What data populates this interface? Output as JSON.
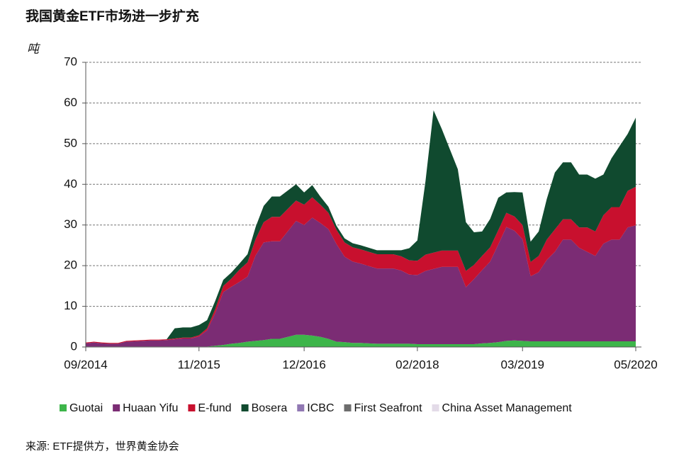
{
  "chart_data": {
    "type": "stacked_area",
    "title": "我国黄金ETF市场进一步扩充",
    "y_label": "吨",
    "source": "来源: ETF提供方，世界黄金协会",
    "categories": [
      "09/2014",
      null,
      null,
      null,
      null,
      null,
      null,
      null,
      null,
      null,
      null,
      null,
      null,
      null,
      "11/2015",
      null,
      null,
      null,
      null,
      null,
      null,
      null,
      null,
      null,
      null,
      null,
      null,
      "12/2016",
      null,
      null,
      null,
      null,
      null,
      null,
      null,
      null,
      null,
      null,
      null,
      null,
      null,
      "02/2018",
      null,
      null,
      null,
      null,
      null,
      null,
      null,
      null,
      null,
      null,
      null,
      null,
      "03/2019",
      null,
      null,
      null,
      null,
      null,
      null,
      null,
      null,
      null,
      null,
      null,
      null,
      null,
      "05/2020"
    ],
    "series": [
      {
        "name": "Guotai",
        "color": "#3db54a",
        "values": [
          0.1,
          0.1,
          0.1,
          0.1,
          0.1,
          0.1,
          0.1,
          0.1,
          0.1,
          0.1,
          0.1,
          0.1,
          0.1,
          0.1,
          0.1,
          0.1,
          0.3,
          0.5,
          0.8,
          1,
          1.3,
          1.5,
          1.7,
          2,
          2,
          2.5,
          3,
          3,
          2.8,
          2.5,
          2,
          1.3,
          1.2,
          1,
          1,
          0.9,
          0.8,
          0.8,
          0.8,
          0.8,
          0.8,
          0.7,
          0.7,
          0.7,
          0.7,
          0.7,
          0.7,
          0.7,
          0.7,
          0.9,
          1,
          1.2,
          1.5,
          1.6,
          1.5,
          1.4,
          1.4,
          1.4,
          1.4,
          1.4,
          1.4,
          1.4,
          1.4,
          1.4,
          1.4,
          1.4,
          1.4,
          1.4,
          1.4
        ]
      },
      {
        "name": "Huaan Yifu",
        "color": "#7b2c74",
        "values": [
          0.8,
          1,
          0.8,
          0.7,
          0.7,
          1.2,
          1.3,
          1.4,
          1.5,
          1.5,
          1.6,
          1.8,
          2,
          2,
          2.5,
          4,
          8,
          13,
          14,
          15,
          16,
          21,
          24,
          24,
          24,
          26,
          28,
          27,
          29,
          28,
          27,
          24,
          21,
          20,
          19.5,
          19,
          18.5,
          18.5,
          18.5,
          18,
          17,
          17,
          18,
          18.5,
          19,
          19,
          19,
          14,
          16,
          18,
          20,
          24,
          28,
          27,
          25,
          16,
          17,
          20,
          22,
          25,
          25,
          23,
          22,
          21,
          24,
          25,
          25,
          28,
          28.5
        ]
      },
      {
        "name": "E-fund",
        "color": "#c8102e",
        "values": [
          0.2,
          0.2,
          0.2,
          0.2,
          0.2,
          0.2,
          0.2,
          0.2,
          0.2,
          0.2,
          0.2,
          0.2,
          0.2,
          0.2,
          0.3,
          0.5,
          1,
          1.5,
          2,
          3,
          3.5,
          4,
          5,
          6,
          6,
          5.5,
          5,
          5,
          5,
          4.5,
          4,
          3.5,
          3.5,
          3.5,
          3.5,
          3.5,
          3.5,
          3.5,
          3.5,
          3.5,
          3.5,
          3.5,
          4,
          4,
          4,
          4,
          4,
          4,
          3.5,
          3.5,
          3.5,
          3.5,
          3.5,
          3.5,
          3.5,
          3.5,
          4,
          5,
          5.5,
          5,
          5,
          5,
          6,
          6,
          7,
          8,
          8,
          9,
          9.5
        ]
      },
      {
        "name": "Bosera",
        "color": "#104a2f",
        "values": [
          0,
          0,
          0,
          0,
          0,
          0,
          0,
          0,
          0,
          0,
          0,
          2.5,
          2.5,
          2.5,
          2.5,
          2,
          2,
          1.5,
          1.5,
          1.5,
          2,
          3,
          4,
          5,
          5,
          4.5,
          4,
          3,
          3,
          2,
          1.5,
          1,
          1,
          1,
          1,
          1,
          1,
          1,
          1,
          1.5,
          3,
          5,
          18,
          35,
          30,
          25,
          20,
          12,
          8,
          6,
          7,
          8,
          5,
          6,
          8,
          5,
          6,
          10,
          14,
          14,
          14,
          13,
          13,
          13,
          10,
          12,
          15,
          14,
          17
        ]
      },
      {
        "name": "ICBC",
        "color": "#9178b3",
        "values": [
          0,
          0,
          0,
          0,
          0,
          0,
          0,
          0,
          0,
          0,
          0,
          0,
          0,
          0,
          0,
          0,
          0,
          0,
          0,
          0,
          0,
          0,
          0,
          0,
          0,
          0,
          0,
          0,
          0,
          0,
          0,
          0,
          0,
          0,
          0,
          0,
          0,
          0,
          0,
          0,
          0,
          0,
          0,
          0,
          0,
          0,
          0,
          0,
          0,
          0,
          0,
          0,
          0,
          0,
          0,
          0,
          0,
          0,
          0,
          0,
          0,
          0,
          0,
          0,
          0,
          0,
          0,
          0,
          0
        ]
      },
      {
        "name": "First Seafront",
        "color": "#6d6d6d",
        "values": [
          0,
          0,
          0,
          0,
          0,
          0,
          0,
          0,
          0,
          0,
          0,
          0,
          0,
          0,
          0,
          0,
          0,
          0,
          0,
          0,
          0,
          0,
          0,
          0,
          0,
          0,
          0,
          0,
          0,
          0,
          0,
          0,
          0,
          0,
          0,
          0,
          0,
          0,
          0,
          0,
          0,
          0,
          0,
          0,
          0,
          0,
          0,
          0,
          0,
          0,
          0,
          0,
          0,
          0,
          0,
          0,
          0,
          0,
          0,
          0,
          0,
          0,
          0,
          0,
          0,
          0,
          0,
          0,
          0
        ]
      },
      {
        "name": "China Asset Management",
        "color": "#e3dbe8",
        "values": [
          0,
          0,
          0,
          0,
          0,
          0,
          0,
          0,
          0,
          0,
          0,
          0,
          0,
          0,
          0,
          0,
          0,
          0,
          0,
          0,
          0,
          0,
          0,
          0,
          0,
          0,
          0,
          0,
          0,
          0,
          0,
          0,
          0,
          0,
          0,
          0,
          0,
          0,
          0,
          0,
          0,
          0,
          0,
          0,
          0,
          0,
          0,
          0,
          0,
          0,
          0,
          0,
          0,
          0,
          0,
          0,
          0,
          0,
          0,
          0,
          0,
          0,
          0,
          0,
          0,
          0,
          0,
          0,
          0
        ]
      }
    ],
    "ylim": [
      0,
      70
    ],
    "yticks": [
      0,
      10,
      20,
      30,
      40,
      50,
      60,
      70
    ],
    "grid": true
  }
}
